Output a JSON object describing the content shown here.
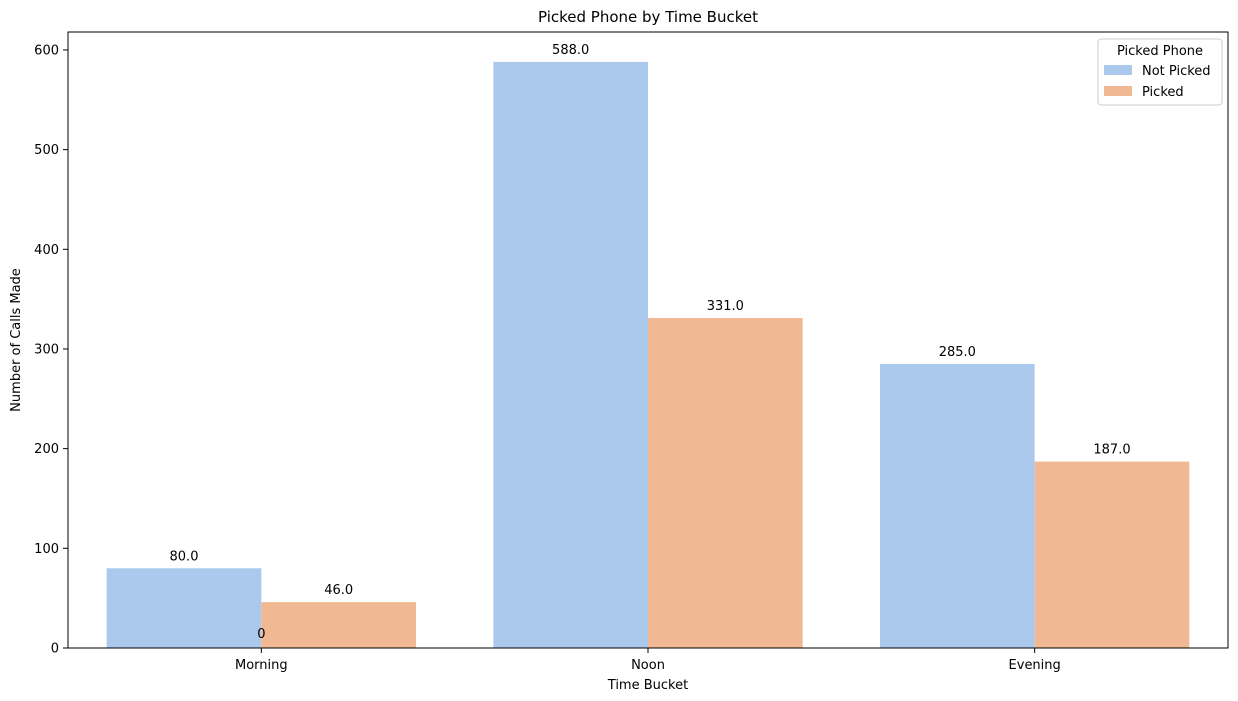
{
  "chart_data": {
    "type": "bar",
    "title": "Picked Phone by Time Bucket",
    "xlabel": "Time Bucket",
    "ylabel": "Number of Calls Made",
    "categories": [
      "Morning",
      "Noon",
      "Evening"
    ],
    "series": [
      {
        "name": "Not Picked",
        "values": [
          80,
          588,
          285
        ],
        "color": "#abc9ed"
      },
      {
        "name": "Picked",
        "values": [
          46,
          331,
          187
        ],
        "color": "#f0b893"
      }
    ],
    "data_labels": [
      [
        "80.0",
        "588.0",
        "285.0"
      ],
      [
        "46.0",
        "331.0",
        "187.0"
      ]
    ],
    "extra_annotation": "0",
    "ylim": [
      0,
      618
    ],
    "yticks": [
      0,
      100,
      200,
      300,
      400,
      500,
      600
    ],
    "ytick_labels": [
      "0",
      "100",
      "200",
      "300",
      "400",
      "500",
      "600"
    ],
    "grid": false,
    "legend": {
      "title": "Picked Phone",
      "placement": "top-right"
    }
  }
}
